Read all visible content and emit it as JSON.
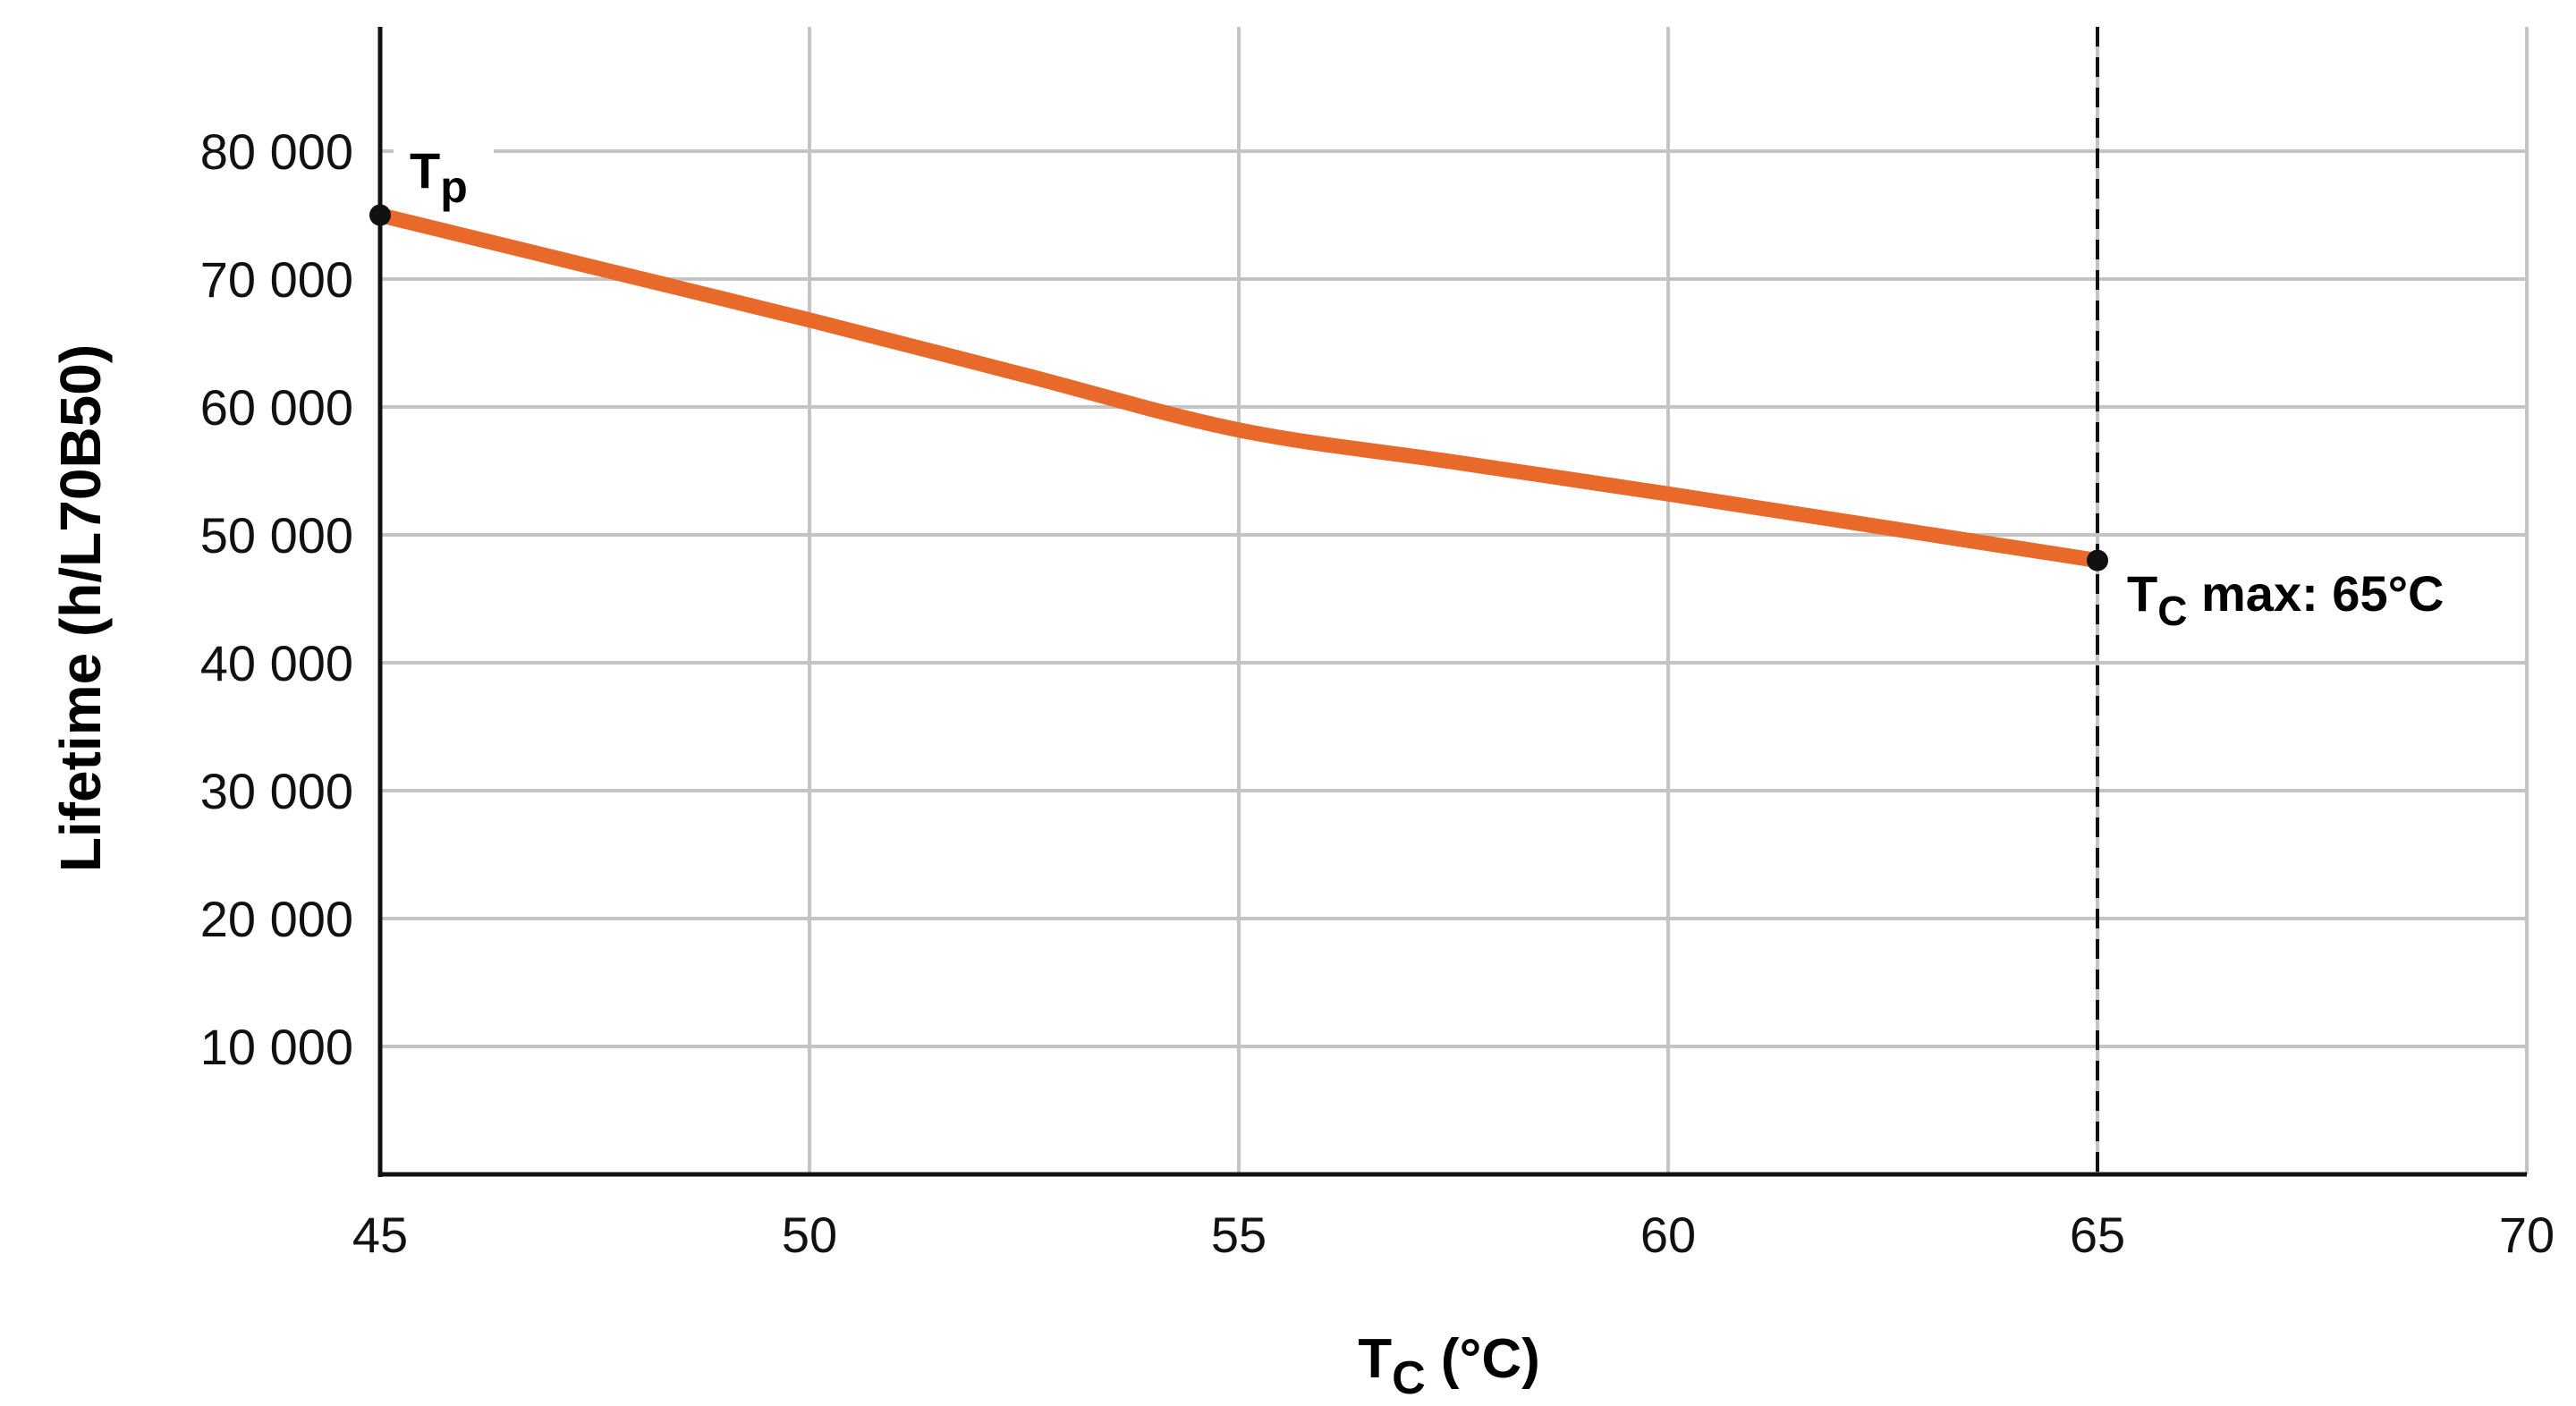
{
  "colors": {
    "line": "#E8692A",
    "grid": "#C4C4C4",
    "axis": "#111111",
    "marker": "#111111",
    "text": "#111111"
  },
  "chart_data": {
    "type": "line",
    "title": "",
    "xlabel": "Tc (°C)",
    "xlabel_main": "T",
    "xlabel_sub": "C",
    "xlabel_rest": " (°C)",
    "ylabel": "Lifetime (h/L70B50)",
    "xlim": [
      45,
      70
    ],
    "ylim": [
      0,
      90000
    ],
    "x_ticks": [
      45,
      50,
      55,
      60,
      65,
      70
    ],
    "x_tick_labels": [
      "45",
      "50",
      "55",
      "60",
      "65",
      "70"
    ],
    "y_ticks": [
      10000,
      20000,
      30000,
      40000,
      50000,
      60000,
      70000,
      80000
    ],
    "y_tick_labels": [
      "10 000",
      "20 000",
      "30 000",
      "40 000",
      "50 000",
      "60 000",
      "70 000",
      "80 000"
    ],
    "grid": true,
    "series": [
      {
        "name": "Lifetime",
        "x": [
          45,
          47.5,
          50,
          52.5,
          55,
          57.5,
          60,
          62.5,
          65
        ],
        "values": [
          75000,
          70900,
          66800,
          62500,
          58200,
          55700,
          53200,
          50600,
          48000
        ]
      }
    ],
    "annotations": [
      {
        "label": "Tp",
        "main": "T",
        "sub": "p",
        "x": 45,
        "y": 75000
      },
      {
        "label": "Tc max: 65°C",
        "main": "T",
        "sub": "C",
        "rest": " max: 65°C",
        "x": 65,
        "y": 48000
      }
    ],
    "reference_lines": [
      {
        "orientation": "vertical",
        "x": 65,
        "style": "dashed"
      }
    ]
  }
}
